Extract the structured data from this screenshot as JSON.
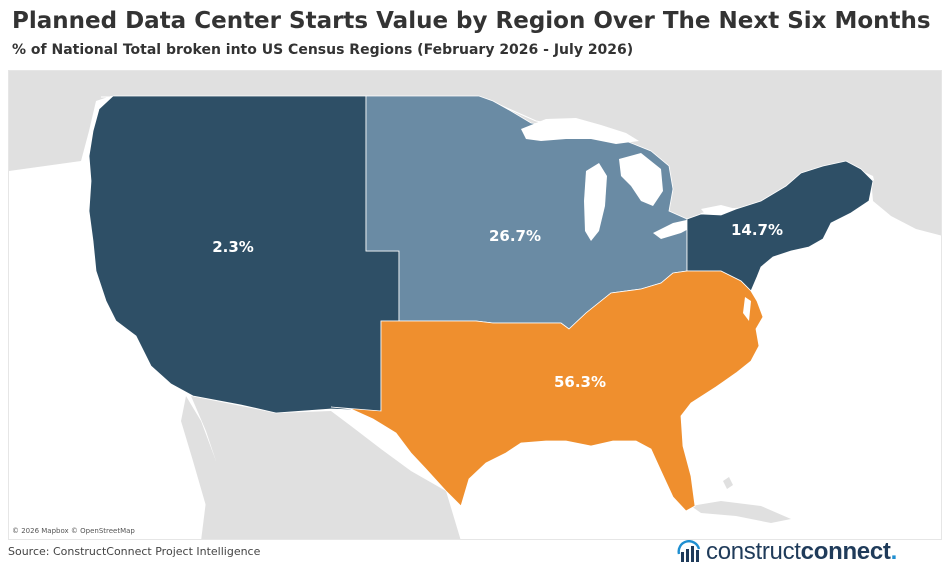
{
  "header": {
    "title": "Planned Data Center Starts Value by Region Over The Next Six Months",
    "subtitle": "% of National Total broken into US Census Regions (February 2026 - July 2026)"
  },
  "map": {
    "attribution": "© 2026 Mapbox © OpenStreetMap",
    "regions": [
      {
        "id": "west",
        "percent": 2.3,
        "label": "2.3%",
        "color": "#2e4f66"
      },
      {
        "id": "midwest",
        "percent": 26.7,
        "label": "26.7%",
        "color": "#6a8ba4"
      },
      {
        "id": "northeast",
        "percent": 14.7,
        "label": "14.7%",
        "color": "#2e4f66"
      },
      {
        "id": "south",
        "percent": 56.3,
        "label": "56.3%",
        "color": "#ef8f2e"
      }
    ],
    "colors": {
      "water": "#ffffff",
      "land": "#e0e0e0",
      "label_text": "#ffffff"
    }
  },
  "footer": {
    "source": "Source: ConstructConnect Project Intelligence",
    "logo_regular": "construct",
    "logo_bold": "connect",
    "logo_dot": "."
  }
}
